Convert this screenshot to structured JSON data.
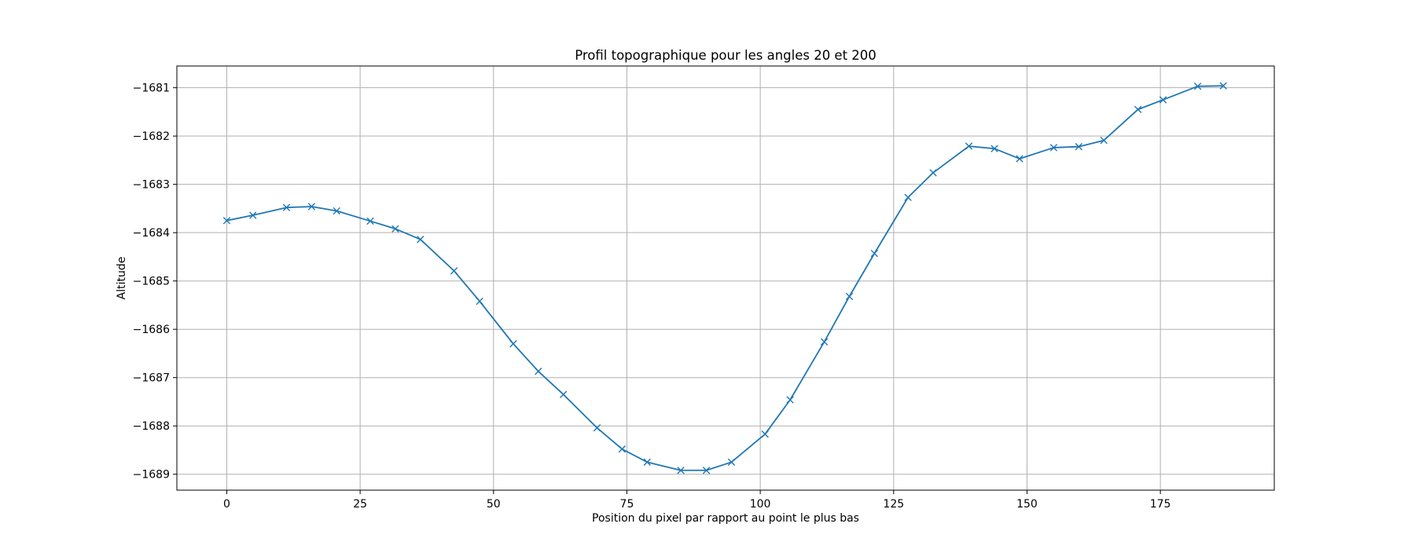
{
  "colors": {
    "series": "#1f77b4",
    "grid": "#b0b0b0",
    "axes": "#000000",
    "background": "#ffffff"
  },
  "chart_data": {
    "type": "line",
    "title": "Profil topographique pour les angles 20 et 200",
    "xlabel": "Position du pixel par rapport au point le plus bas",
    "ylabel": "Altitude",
    "xlim": [
      -9.35,
      196.35
    ],
    "ylim": [
      -1689.33,
      -1680.55
    ],
    "xticks": [
      0,
      25,
      50,
      75,
      100,
      125,
      150,
      175
    ],
    "xtick_labels": [
      "0",
      "25",
      "50",
      "75",
      "100",
      "125",
      "150",
      "175"
    ],
    "yticks": [
      -1681,
      -1682,
      -1683,
      -1684,
      -1685,
      -1686,
      -1687,
      -1688,
      -1689
    ],
    "ytick_labels": [
      "−1681",
      "−1682",
      "−1683",
      "−1684",
      "−1685",
      "−1686",
      "−1687",
      "−1688",
      "−1689"
    ],
    "grid": true,
    "marker": "x",
    "series": [
      {
        "name": "",
        "x": [
          0,
          4.9,
          11.2,
          15.9,
          20.6,
          26.9,
          31.6,
          36.3,
          42.6,
          47.4,
          53.7,
          58.4,
          63.1,
          69.4,
          74.1,
          78.8,
          85.1,
          89.9,
          94.6,
          100.9,
          105.6,
          112.0,
          116.7,
          121.4,
          127.7,
          132.4,
          139.1,
          143.9,
          148.6,
          155.0,
          159.7,
          164.4,
          170.8,
          175.5,
          182.0,
          186.8
        ],
        "y": [
          -1683.75,
          -1683.64,
          -1683.48,
          -1683.46,
          -1683.55,
          -1683.76,
          -1683.92,
          -1684.14,
          -1684.79,
          -1685.42,
          -1686.3,
          -1686.87,
          -1687.35,
          -1688.04,
          -1688.48,
          -1688.75,
          -1688.92,
          -1688.92,
          -1688.75,
          -1688.17,
          -1687.46,
          -1686.26,
          -1685.32,
          -1684.43,
          -1683.27,
          -1682.76,
          -1682.21,
          -1682.26,
          -1682.47,
          -1682.24,
          -1682.22,
          -1682.09,
          -1681.45,
          -1681.25,
          -1680.97,
          -1680.96
        ]
      }
    ]
  }
}
